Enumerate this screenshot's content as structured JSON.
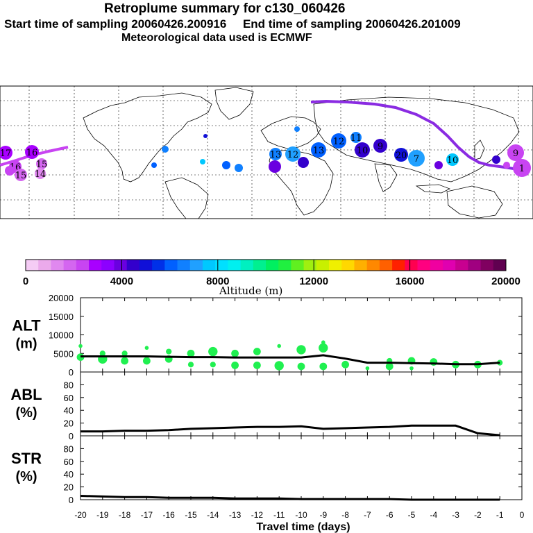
{
  "header": {
    "title": "Retroplume summary for c130_060426",
    "sampling_line": "Start time of sampling 20060426.200916     End time of sampling 20060426.201009",
    "met_line": "Meteorological data used is ECMWF"
  },
  "colorbar": {
    "tick_labels": [
      "0",
      "4000",
      "8000",
      "12000",
      "16000",
      "20000"
    ],
    "label": "Altitude (m)",
    "colors": [
      "#f5ccf5",
      "#ebaaeb",
      "#e088ef",
      "#d466f0",
      "#c844f2",
      "#a800ff",
      "#8c00ff",
      "#6a00e0",
      "#3300cc",
      "#1010d8",
      "#0030e8",
      "#0060ff",
      "#1080ff",
      "#20a0ff",
      "#00c8ff",
      "#00e0ff",
      "#00f0f0",
      "#00f0c0",
      "#00f090",
      "#00f060",
      "#20f040",
      "#60f020",
      "#a0f010",
      "#c8f000",
      "#f0f000",
      "#ffd800",
      "#ffb000",
      "#ff8800",
      "#ff6000",
      "#ff2000",
      "#ff0050",
      "#ff0080",
      "#f000a0",
      "#e000b0",
      "#c80090",
      "#a00080",
      "#800060",
      "#600050"
    ]
  },
  "map": {
    "labels": {
      "clusters": [
        "17",
        "16",
        "15",
        "14",
        "16",
        "15",
        "14",
        "13",
        "12",
        "13",
        "12",
        "11",
        "10",
        "9",
        "20",
        "7",
        "10",
        "10",
        "9",
        "1"
      ]
    },
    "track_color": "#8a2be2"
  },
  "chart_data": {
    "type": "line",
    "xlabel": "Travel time (days)",
    "x_ticks": [
      "-20",
      "-19",
      "-18",
      "-17",
      "-16",
      "-15",
      "-14",
      "-13",
      "-12",
      "-11",
      "-10",
      "-9",
      "-8",
      "-7",
      "-6",
      "-5",
      "-4",
      "-3",
      "-2",
      "-1",
      "0"
    ],
    "x_range": [
      -20,
      0
    ],
    "panels": [
      {
        "name": "ALT",
        "ylabel": "ALT\n(m)",
        "ylabel_line1": "ALT",
        "ylabel_line2": "(m)",
        "ylim": [
          0,
          20000
        ],
        "y_ticks": [
          "0",
          "5000",
          "10000",
          "15000",
          "20000"
        ],
        "y_tick_values": [
          0,
          5000,
          10000,
          15000,
          20000
        ],
        "line_x": [
          -20,
          -19,
          -18,
          -17,
          -16,
          -15,
          -14,
          -13,
          -12,
          -11,
          -10,
          -9,
          -8,
          -7,
          -6,
          -5,
          -4,
          -3,
          -2,
          -1
        ],
        "line_y": [
          4200,
          4200,
          4200,
          4200,
          4100,
          4000,
          4000,
          3900,
          3900,
          3900,
          3900,
          4500,
          3600,
          2500,
          2500,
          2400,
          2300,
          2100,
          2100,
          2500
        ],
        "cluster_points": {
          "x": [
            -20,
            -20,
            -19,
            -19,
            -18,
            -18,
            -17,
            -17,
            -16,
            -16,
            -15,
            -15,
            -14,
            -14,
            -13,
            -13,
            -12,
            -12,
            -11,
            -11,
            -10,
            -10,
            -9,
            -9,
            -9,
            -8,
            -7,
            -6,
            -6,
            -5,
            -5,
            -4,
            -3,
            -2,
            -1
          ],
          "y": [
            4000,
            7000,
            3500,
            5000,
            3000,
            5000,
            3000,
            6500,
            3500,
            5500,
            2000,
            5000,
            2000,
            5500,
            1800,
            5000,
            1800,
            5500,
            1700,
            7000,
            1500,
            6000,
            1500,
            6500,
            8000,
            2000,
            1000,
            1500,
            3000,
            1000,
            3000,
            2700,
            2000,
            2000,
            2500
          ],
          "size": [
            3,
            1,
            4,
            2,
            3,
            2,
            3,
            1,
            3,
            2,
            2,
            3,
            2,
            4,
            3,
            3,
            3,
            3,
            4,
            1,
            3,
            4,
            3,
            4,
            1,
            3,
            1,
            3,
            2,
            1,
            3,
            3,
            3,
            3,
            2
          ]
        }
      },
      {
        "name": "ABL",
        "ylabel_line1": "ABL",
        "ylabel_line2": "(%)",
        "ylim": [
          0,
          100
        ],
        "y_ticks": [
          "0",
          "20",
          "40",
          "60",
          "80"
        ],
        "y_tick_values": [
          0,
          20,
          40,
          60,
          80
        ],
        "line_x": [
          -20,
          -19,
          -18,
          -17,
          -16,
          -15,
          -14,
          -13,
          -12,
          -11,
          -10,
          -9,
          -8,
          -7,
          -6,
          -5,
          -4,
          -3,
          -2,
          -1
        ],
        "line_y": [
          7,
          7,
          8,
          8,
          9,
          11,
          12,
          13,
          14,
          14,
          15,
          11,
          12,
          13,
          14,
          16,
          16,
          16,
          4,
          1
        ]
      },
      {
        "name": "STR",
        "ylabel_line1": "STR",
        "ylabel_line2": "(%)",
        "ylim": [
          0,
          100
        ],
        "y_ticks": [
          "0",
          "20",
          "40",
          "60",
          "80"
        ],
        "y_tick_values": [
          0,
          20,
          40,
          60,
          80
        ],
        "line_x": [
          -20,
          -19,
          -18,
          -17,
          -16,
          -15,
          -14,
          -13,
          -12,
          -11,
          -10,
          -9,
          -8,
          -7,
          -6,
          -5,
          -4,
          -3,
          -2,
          -1
        ],
        "line_y": [
          6,
          5,
          4,
          4,
          3,
          3,
          3,
          2,
          2,
          2,
          1,
          1,
          1,
          1,
          1,
          0,
          0,
          0,
          0,
          0
        ]
      }
    ],
    "point_color": "#20f050",
    "line_color": "#000000"
  }
}
